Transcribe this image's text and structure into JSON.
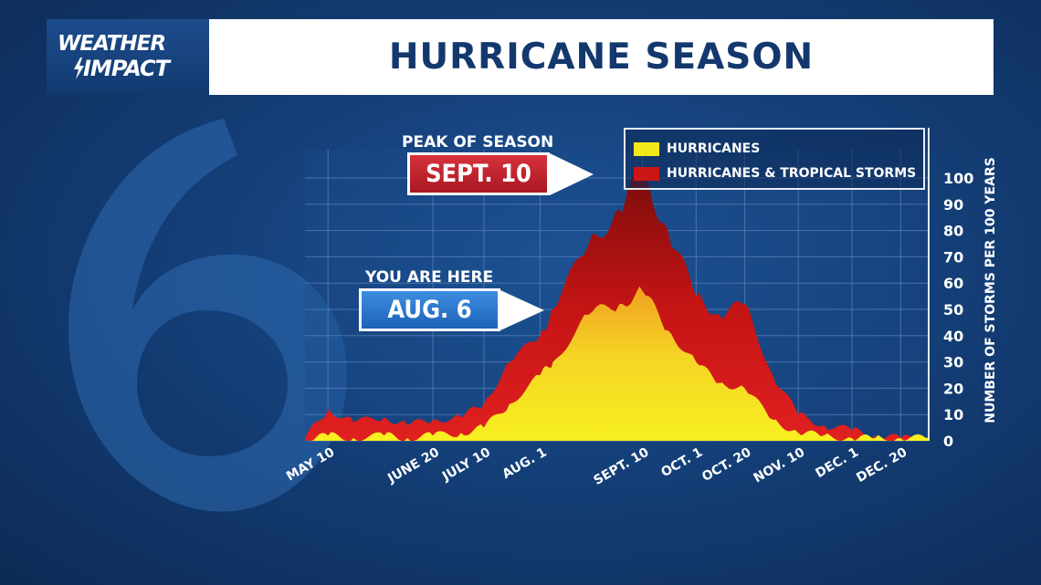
{
  "header": {
    "logo_line1": "WEATHER",
    "logo_line2": "IMPACT",
    "title": "HURRICANE SEASON"
  },
  "background_watermark": "6",
  "callouts": {
    "peak": {
      "label": "PEAK OF SEASON",
      "date": "SEPT. 10"
    },
    "current": {
      "label": "YOU ARE HERE",
      "date": "AUG. 6"
    }
  },
  "colors": {
    "hurricanes": "#f2e81c",
    "hurricanes_and_tropical_storms": "#cc1616",
    "peak_box": "#c7262f",
    "current_box": "#2c78cf",
    "title_text": "#13386e"
  },
  "chart_data": {
    "type": "area",
    "ylabel": "NUMBER OF STORMS PER 100 YEARS",
    "ylim": [
      0,
      110
    ],
    "yticks": [
      0,
      10,
      20,
      30,
      40,
      50,
      60,
      70,
      80,
      90,
      100
    ],
    "x_tick_labels": [
      "MAY 10",
      "JUNE 20",
      "JULY 10",
      "AUG. 1",
      "SEPT. 10",
      "OCT. 1",
      "OCT. 20",
      "NOV. 10",
      "DEC. 1",
      "DEC. 20"
    ],
    "legend_position": "top-right",
    "grid": true,
    "series": [
      {
        "name": "HURRICANES & TROPICAL STORMS",
        "color": "#cc1616",
        "points": [
          [
            "MAY 1",
            1
          ],
          [
            "MAY 10",
            12
          ],
          [
            "MAY 20",
            7
          ],
          [
            "JUNE 1",
            9
          ],
          [
            "JUNE 10",
            6
          ],
          [
            "JUNE 20",
            8
          ],
          [
            "JULY 1",
            9
          ],
          [
            "JULY 10",
            14
          ],
          [
            "JULY 20",
            30
          ],
          [
            "AUG. 1",
            40
          ],
          [
            "AUG. 6",
            50
          ],
          [
            "AUG. 20",
            75
          ],
          [
            "SEPT. 1",
            88
          ],
          [
            "SEPT. 10",
            102
          ],
          [
            "SEPT. 20",
            80
          ],
          [
            "OCT. 1",
            55
          ],
          [
            "OCT. 10",
            48
          ],
          [
            "OCT. 20",
            52
          ],
          [
            "OCT. 31",
            25
          ],
          [
            "NOV. 10",
            10
          ],
          [
            "NOV. 20",
            6
          ],
          [
            "DEC. 1",
            4
          ],
          [
            "DEC. 10",
            2
          ],
          [
            "DEC. 20",
            1
          ],
          [
            "DEC. 31",
            0
          ]
        ]
      },
      {
        "name": "HURRICANES",
        "color": "#f2e81c",
        "points": [
          [
            "MAY 1",
            0
          ],
          [
            "MAY 10",
            2
          ],
          [
            "MAY 20",
            1
          ],
          [
            "JUNE 1",
            2
          ],
          [
            "JUNE 10",
            1
          ],
          [
            "JUNE 20",
            2
          ],
          [
            "JULY 1",
            3
          ],
          [
            "JULY 10",
            5
          ],
          [
            "JULY 20",
            14
          ],
          [
            "AUG. 1",
            25
          ],
          [
            "AUG. 6",
            30
          ],
          [
            "AUG. 20",
            48
          ],
          [
            "SEPT. 1",
            52
          ],
          [
            "SEPT. 10",
            57
          ],
          [
            "SEPT. 20",
            42
          ],
          [
            "OCT. 1",
            30
          ],
          [
            "OCT. 10",
            22
          ],
          [
            "OCT. 20",
            20
          ],
          [
            "OCT. 31",
            8
          ],
          [
            "NOV. 10",
            3
          ],
          [
            "NOV. 20",
            2
          ],
          [
            "DEC. 1",
            1
          ],
          [
            "DEC. 10",
            1
          ],
          [
            "DEC. 20",
            1
          ],
          [
            "DEC. 31",
            1
          ]
        ]
      }
    ]
  }
}
